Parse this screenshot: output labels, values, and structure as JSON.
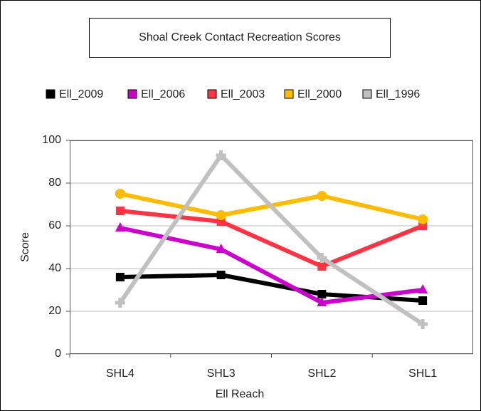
{
  "chart_data": {
    "type": "line",
    "title": "Shoal Creek Contact Recreation Scores",
    "x_label": "Ell Reach",
    "y_label": "Score",
    "categories": [
      "SHL4",
      "SHL3",
      "SHL2",
      "SHL1"
    ],
    "series": [
      {
        "name": "Ell_2009",
        "color": "#000000",
        "marker": "square",
        "values": [
          36,
          37,
          28,
          25
        ]
      },
      {
        "name": "Ell_2006",
        "color": "#cc00cc",
        "marker": "triangle",
        "values": [
          59,
          49,
          24,
          30
        ]
      },
      {
        "name": "Ell_2003",
        "color": "#ff3344",
        "marker": "square",
        "values": [
          67,
          62,
          41,
          60
        ]
      },
      {
        "name": "Ell_2000",
        "color": "#ffbb00",
        "marker": "circle",
        "values": [
          75,
          65,
          74,
          63
        ]
      },
      {
        "name": "Ell_1996",
        "color": "#c0c0c0",
        "marker": "cross",
        "values": [
          24,
          93,
          45,
          14
        ]
      }
    ],
    "ylim": [
      0,
      100
    ],
    "yticks": [
      0,
      20,
      40,
      60,
      80,
      100
    ],
    "grid": true
  }
}
